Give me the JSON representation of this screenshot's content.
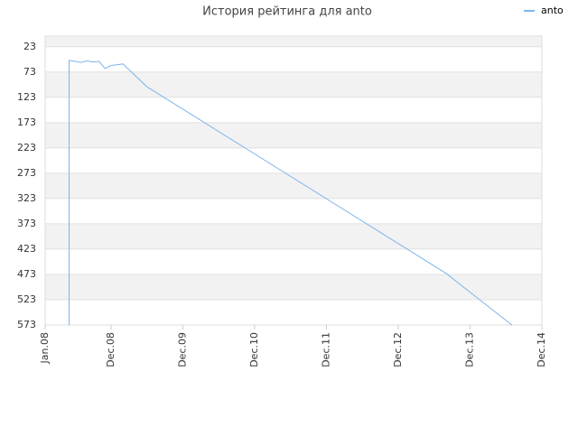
{
  "chart_data": {
    "type": "line",
    "title": "История рейтинга для anto",
    "x": [
      "2008-05",
      "2008-05",
      "2008-06",
      "2008-07",
      "2008-08",
      "2008-09",
      "2008-10",
      "2008-11",
      "2008-12",
      "2009-02",
      "2009-06",
      "2013-08",
      "2014-07"
    ],
    "series": [
      {
        "name": "anto",
        "color": "#7cb5ec",
        "values": [
          573,
          50,
          52,
          54,
          51,
          53,
          52,
          66,
          60,
          57,
          102,
          471,
          573
        ]
      }
    ],
    "xlim": [
      "2008-01",
      "2014-12"
    ],
    "xticks": [
      {
        "value": "2008-01",
        "label": "Jan.08"
      },
      {
        "value": "2008-12",
        "label": "Dec.08"
      },
      {
        "value": "2009-12",
        "label": "Dec.09"
      },
      {
        "value": "2010-12",
        "label": "Dec.10"
      },
      {
        "value": "2011-12",
        "label": "Dec.11"
      },
      {
        "value": "2012-12",
        "label": "Dec.12"
      },
      {
        "value": "2013-12",
        "label": "Dec.13"
      },
      {
        "value": "2014-12",
        "label": "Dec.14"
      }
    ],
    "ylim": [
      573,
      2
    ],
    "yticks": [
      23,
      73,
      123,
      173,
      223,
      273,
      323,
      373,
      423,
      473,
      523,
      573
    ],
    "grid": true,
    "legend": "top-right"
  }
}
